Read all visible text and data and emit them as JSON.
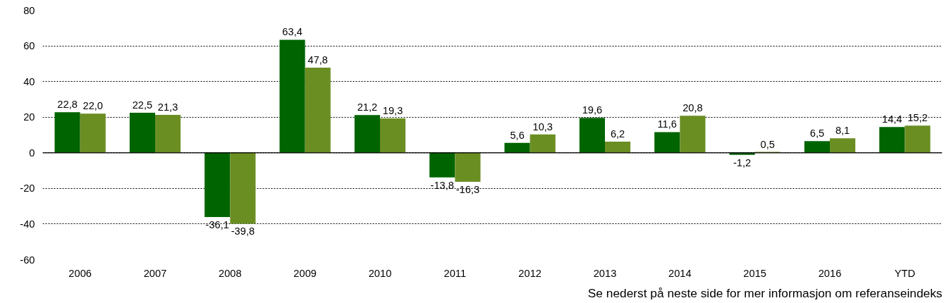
{
  "chart_data": {
    "type": "bar",
    "categories": [
      "2006",
      "2007",
      "2008",
      "2009",
      "2010",
      "2011",
      "2012",
      "2013",
      "2014",
      "2015",
      "2016",
      "YTD"
    ],
    "series": [
      {
        "color": "#006400",
        "values": [
          22.8,
          22.5,
          -36.1,
          63.4,
          21.2,
          -13.8,
          5.6,
          19.6,
          11.6,
          -1.2,
          6.5,
          14.4
        ],
        "value_labels": [
          "22,8",
          "22,5",
          "-36,1",
          "63,4",
          "21,2",
          "-13,8",
          "5,6",
          "19,6",
          "11,6",
          "-1,2",
          "6,5",
          "14,4"
        ]
      },
      {
        "color": "#6b8e23",
        "values": [
          22.0,
          21.3,
          -39.8,
          47.8,
          19.3,
          -16.3,
          10.3,
          6.2,
          20.8,
          0.5,
          8.1,
          15.2
        ],
        "value_labels": [
          "22,0",
          "21,3",
          "-39,8",
          "47,8",
          "19,3",
          "-16,3",
          "10,3",
          "6,2",
          "20,8",
          "0,5",
          "8,1",
          "15,2"
        ]
      }
    ],
    "ylim": [
      -60,
      80
    ],
    "yticks": [
      -60,
      -40,
      -20,
      0,
      20,
      40,
      60,
      80
    ],
    "grid": "y",
    "ref_lines": [
      {
        "axis": "y",
        "value": 0,
        "color": "#000000",
        "line_style": "solid"
      }
    ],
    "annotations": [
      "Se nederst på neste side for mer informasjon om referanseindeks"
    ]
  }
}
